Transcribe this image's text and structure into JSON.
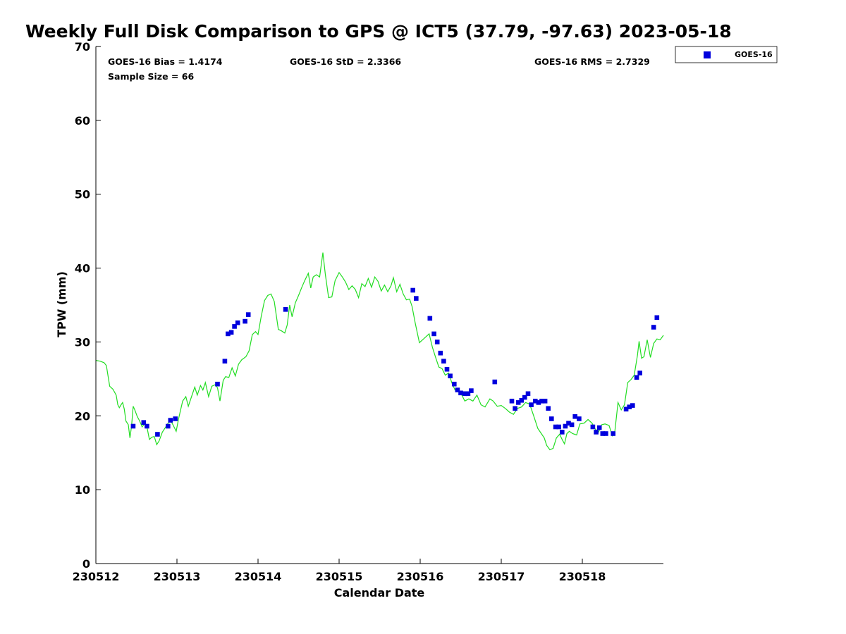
{
  "chart_data": {
    "type": "scatter",
    "title": "Weekly Full Disk Comparison to GPS @ ICT5 (37.79, -97.63) 2023-05-18",
    "xlabel": "Calendar Date",
    "ylabel": "TPW (mm)",
    "xlim": [
      0,
      7
    ],
    "ylim": [
      0,
      70
    ],
    "x_unit": "days since 230512",
    "x_ticks": [
      {
        "value": 0,
        "label": "230512"
      },
      {
        "value": 1,
        "label": "230513"
      },
      {
        "value": 2,
        "label": "230514"
      },
      {
        "value": 3,
        "label": "230515"
      },
      {
        "value": 4,
        "label": "230516"
      },
      {
        "value": 5,
        "label": "230517"
      },
      {
        "value": 6,
        "label": "230518"
      }
    ],
    "y_ticks": [
      0,
      10,
      20,
      30,
      40,
      50,
      60,
      70
    ],
    "stats": {
      "bias": "GOES-16 Bias = 1.4174",
      "std": "GOES-16 StD = 2.3366",
      "rms": "GOES-16 RMS = 2.7329",
      "sample": "Sample Size = 66"
    },
    "legend": {
      "position": "top-right",
      "label": "GOES-16",
      "color": "#0000dd"
    },
    "series": [
      {
        "name": "GOES-16",
        "kind": "scatter",
        "color": "#0000dd",
        "points": [
          [
            0.46,
            18.6
          ],
          [
            0.59,
            19.1
          ],
          [
            0.63,
            18.6
          ],
          [
            0.76,
            17.5
          ],
          [
            0.89,
            18.6
          ],
          [
            0.92,
            19.4
          ],
          [
            0.98,
            19.6
          ],
          [
            1.5,
            24.3
          ],
          [
            1.59,
            27.4
          ],
          [
            1.63,
            31.1
          ],
          [
            1.67,
            31.3
          ],
          [
            1.71,
            32.1
          ],
          [
            1.75,
            32.6
          ],
          [
            1.84,
            32.8
          ],
          [
            1.88,
            33.7
          ],
          [
            2.34,
            34.4
          ],
          [
            3.91,
            37.0
          ],
          [
            3.95,
            35.9
          ],
          [
            4.12,
            33.2
          ],
          [
            4.17,
            31.1
          ],
          [
            4.21,
            30.0
          ],
          [
            4.25,
            28.5
          ],
          [
            4.29,
            27.4
          ],
          [
            4.33,
            26.3
          ],
          [
            4.37,
            25.4
          ],
          [
            4.42,
            24.3
          ],
          [
            4.46,
            23.5
          ],
          [
            4.5,
            23.1
          ],
          [
            4.55,
            23.0
          ],
          [
            4.59,
            23.0
          ],
          [
            4.63,
            23.4
          ],
          [
            4.92,
            24.6
          ],
          [
            5.13,
            22.0
          ],
          [
            5.17,
            21.0
          ],
          [
            5.21,
            21.8
          ],
          [
            5.25,
            22.1
          ],
          [
            5.29,
            22.5
          ],
          [
            5.33,
            23.0
          ],
          [
            5.37,
            21.5
          ],
          [
            5.42,
            22.0
          ],
          [
            5.46,
            21.8
          ],
          [
            5.5,
            22.0
          ],
          [
            5.54,
            22.0
          ],
          [
            5.58,
            21.0
          ],
          [
            5.62,
            19.6
          ],
          [
            5.67,
            18.5
          ],
          [
            5.71,
            18.5
          ],
          [
            5.75,
            17.8
          ],
          [
            5.79,
            18.6
          ],
          [
            5.83,
            19.0
          ],
          [
            5.87,
            18.8
          ],
          [
            5.91,
            19.9
          ],
          [
            5.96,
            19.6
          ],
          [
            6.13,
            18.5
          ],
          [
            6.17,
            17.8
          ],
          [
            6.21,
            18.4
          ],
          [
            6.25,
            17.6
          ],
          [
            6.29,
            17.6
          ],
          [
            6.38,
            17.6
          ],
          [
            6.54,
            20.9
          ],
          [
            6.58,
            21.2
          ],
          [
            6.62,
            21.4
          ],
          [
            6.67,
            25.2
          ],
          [
            6.71,
            25.8
          ],
          [
            6.88,
            32.0
          ],
          [
            6.92,
            33.3
          ]
        ]
      },
      {
        "name": "",
        "kind": "line",
        "color": "#22dd22",
        "points": [
          [
            0.0,
            27.5
          ],
          [
            0.05,
            27.4
          ],
          [
            0.1,
            27.2
          ],
          [
            0.13,
            26.8
          ],
          [
            0.17,
            24.0
          ],
          [
            0.21,
            23.6
          ],
          [
            0.25,
            22.8
          ],
          [
            0.27,
            21.5
          ],
          [
            0.29,
            21.1
          ],
          [
            0.31,
            21.5
          ],
          [
            0.33,
            21.8
          ],
          [
            0.35,
            20.9
          ],
          [
            0.37,
            19.3
          ],
          [
            0.4,
            18.8
          ],
          [
            0.42,
            17.0
          ],
          [
            0.44,
            18.6
          ],
          [
            0.46,
            21.3
          ],
          [
            0.48,
            20.8
          ],
          [
            0.51,
            19.9
          ],
          [
            0.54,
            19.3
          ],
          [
            0.57,
            18.5
          ],
          [
            0.6,
            18.9
          ],
          [
            0.63,
            18.5
          ],
          [
            0.66,
            16.8
          ],
          [
            0.69,
            17.1
          ],
          [
            0.72,
            17.2
          ],
          [
            0.75,
            16.1
          ],
          [
            0.78,
            16.6
          ],
          [
            0.82,
            17.8
          ],
          [
            0.85,
            18.3
          ],
          [
            0.89,
            19.0
          ],
          [
            0.92,
            19.4
          ],
          [
            0.95,
            18.8
          ],
          [
            0.99,
            17.9
          ],
          [
            1.02,
            19.6
          ],
          [
            1.07,
            22.0
          ],
          [
            1.11,
            22.6
          ],
          [
            1.14,
            21.3
          ],
          [
            1.18,
            22.6
          ],
          [
            1.22,
            23.9
          ],
          [
            1.25,
            22.8
          ],
          [
            1.29,
            24.1
          ],
          [
            1.32,
            23.5
          ],
          [
            1.35,
            24.5
          ],
          [
            1.39,
            22.6
          ],
          [
            1.43,
            24.0
          ],
          [
            1.47,
            24.2
          ],
          [
            1.5,
            23.8
          ],
          [
            1.53,
            22.0
          ],
          [
            1.57,
            24.8
          ],
          [
            1.6,
            25.3
          ],
          [
            1.64,
            25.2
          ],
          [
            1.68,
            26.5
          ],
          [
            1.72,
            25.4
          ],
          [
            1.76,
            27.0
          ],
          [
            1.8,
            27.6
          ],
          [
            1.85,
            28.0
          ],
          [
            1.89,
            28.8
          ],
          [
            1.93,
            31.0
          ],
          [
            1.97,
            31.4
          ],
          [
            2.0,
            31.0
          ],
          [
            2.04,
            33.5
          ],
          [
            2.08,
            35.6
          ],
          [
            2.12,
            36.3
          ],
          [
            2.16,
            36.5
          ],
          [
            2.2,
            35.5
          ],
          [
            2.25,
            31.7
          ],
          [
            2.29,
            31.5
          ],
          [
            2.33,
            31.2
          ],
          [
            2.36,
            32.3
          ],
          [
            2.39,
            35.0
          ],
          [
            2.42,
            33.4
          ],
          [
            2.46,
            35.3
          ],
          [
            2.5,
            36.3
          ],
          [
            2.54,
            37.4
          ],
          [
            2.58,
            38.4
          ],
          [
            2.62,
            39.3
          ],
          [
            2.65,
            37.3
          ],
          [
            2.68,
            38.8
          ],
          [
            2.72,
            39.1
          ],
          [
            2.76,
            38.8
          ],
          [
            2.8,
            42.1
          ],
          [
            2.83,
            39.2
          ],
          [
            2.87,
            36.0
          ],
          [
            2.91,
            36.1
          ],
          [
            2.95,
            38.3
          ],
          [
            3.0,
            39.4
          ],
          [
            3.04,
            38.8
          ],
          [
            3.08,
            38.1
          ],
          [
            3.12,
            37.1
          ],
          [
            3.16,
            37.6
          ],
          [
            3.2,
            37.1
          ],
          [
            3.24,
            36.0
          ],
          [
            3.28,
            37.9
          ],
          [
            3.32,
            37.5
          ],
          [
            3.36,
            38.6
          ],
          [
            3.4,
            37.4
          ],
          [
            3.44,
            38.8
          ],
          [
            3.48,
            38.2
          ],
          [
            3.52,
            36.9
          ],
          [
            3.56,
            37.7
          ],
          [
            3.6,
            36.8
          ],
          [
            3.64,
            37.6
          ],
          [
            3.67,
            38.7
          ],
          [
            3.71,
            36.8
          ],
          [
            3.75,
            37.8
          ],
          [
            3.79,
            36.5
          ],
          [
            3.83,
            35.7
          ],
          [
            3.87,
            35.8
          ],
          [
            3.9,
            34.8
          ],
          [
            3.94,
            32.5
          ],
          [
            3.99,
            29.9
          ],
          [
            4.03,
            30.3
          ],
          [
            4.07,
            30.7
          ],
          [
            4.11,
            31.1
          ],
          [
            4.15,
            29.3
          ],
          [
            4.19,
            27.9
          ],
          [
            4.23,
            26.6
          ],
          [
            4.27,
            26.4
          ],
          [
            4.31,
            25.5
          ],
          [
            4.35,
            25.8
          ],
          [
            4.39,
            24.5
          ],
          [
            4.43,
            23.5
          ],
          [
            4.47,
            23.6
          ],
          [
            4.51,
            22.9
          ],
          [
            4.55,
            22.0
          ],
          [
            4.6,
            22.3
          ],
          [
            4.65,
            22.0
          ],
          [
            4.7,
            22.8
          ],
          [
            4.75,
            21.5
          ],
          [
            4.8,
            21.2
          ],
          [
            4.86,
            22.3
          ],
          [
            4.9,
            22.0
          ],
          [
            4.95,
            21.3
          ],
          [
            5.0,
            21.4
          ],
          [
            5.05,
            21.0
          ],
          [
            5.1,
            20.5
          ],
          [
            5.15,
            20.2
          ],
          [
            5.2,
            21.0
          ],
          [
            5.25,
            21.2
          ],
          [
            5.3,
            21.8
          ],
          [
            5.35,
            21.6
          ],
          [
            5.4,
            20.0
          ],
          [
            5.45,
            18.3
          ],
          [
            5.5,
            17.5
          ],
          [
            5.53,
            17.0
          ],
          [
            5.56,
            16.0
          ],
          [
            5.6,
            15.4
          ],
          [
            5.64,
            15.6
          ],
          [
            5.68,
            17.0
          ],
          [
            5.72,
            17.5
          ],
          [
            5.75,
            16.8
          ],
          [
            5.78,
            16.2
          ],
          [
            5.81,
            17.6
          ],
          [
            5.84,
            17.9
          ],
          [
            5.88,
            17.6
          ],
          [
            5.93,
            17.4
          ],
          [
            5.97,
            18.9
          ],
          [
            6.02,
            19.0
          ],
          [
            6.07,
            19.5
          ],
          [
            6.12,
            19.0
          ],
          [
            6.16,
            18.2
          ],
          [
            6.2,
            17.8
          ],
          [
            6.24,
            18.8
          ],
          [
            6.28,
            18.9
          ],
          [
            6.33,
            18.7
          ],
          [
            6.37,
            17.3
          ],
          [
            6.4,
            17.8
          ],
          [
            6.44,
            21.8
          ],
          [
            6.48,
            20.8
          ],
          [
            6.52,
            21.5
          ],
          [
            6.56,
            24.5
          ],
          [
            6.6,
            24.9
          ],
          [
            6.64,
            25.5
          ],
          [
            6.68,
            28.2
          ],
          [
            6.7,
            30.1
          ],
          [
            6.73,
            27.8
          ],
          [
            6.76,
            28.0
          ],
          [
            6.8,
            30.3
          ],
          [
            6.84,
            27.9
          ],
          [
            6.88,
            29.8
          ],
          [
            6.92,
            30.4
          ],
          [
            6.96,
            30.3
          ],
          [
            7.0,
            30.9
          ]
        ]
      }
    ]
  }
}
